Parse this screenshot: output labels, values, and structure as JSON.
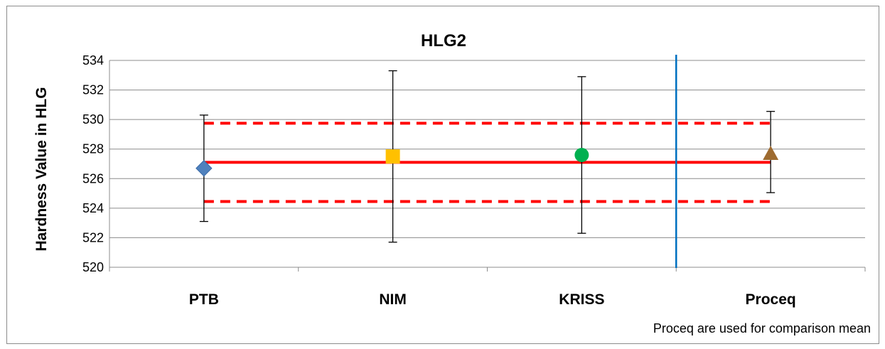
{
  "chart_data": {
    "type": "scatter",
    "title": "HLG2",
    "ylabel": "Hardness Value in HLG",
    "xlabel": "",
    "ylim": [
      520,
      534
    ],
    "yticks": [
      520,
      522,
      524,
      526,
      528,
      530,
      532,
      534
    ],
    "categories": [
      "PTB",
      "NIM",
      "KRISS",
      "Proceq"
    ],
    "grid": true,
    "series": [
      {
        "category": "PTB",
        "value": 526.7,
        "err_low": 523.1,
        "err_high": 530.3,
        "marker": "diamond",
        "color": "#4F81BD"
      },
      {
        "category": "NIM",
        "value": 527.5,
        "err_low": 521.7,
        "err_high": 533.3,
        "marker": "square",
        "color": "#FFC000"
      },
      {
        "category": "KRISS",
        "value": 527.6,
        "err_low": 522.3,
        "err_high": 532.9,
        "marker": "circle",
        "color": "#00B050"
      },
      {
        "category": "Proceq",
        "value": 527.7,
        "err_low": 525.05,
        "err_high": 530.55,
        "marker": "triangle",
        "color": "#9E6B30"
      }
    ],
    "reference_mean": 527.1,
    "reference_upper": 529.75,
    "reference_lower": 524.45,
    "reference_color": "#FF0000",
    "divider_color": "#0070C0",
    "divider_after": "KRISS",
    "annotation": "Proceq are used for comparison mean"
  }
}
